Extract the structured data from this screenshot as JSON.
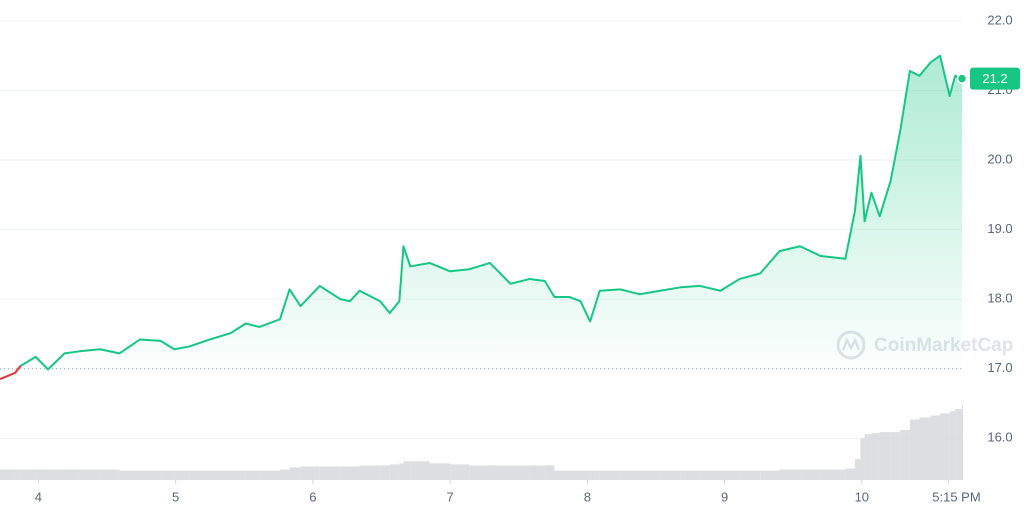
{
  "chart_data": {
    "type": "line",
    "x": [
      3.72,
      3.83,
      3.87,
      3.98,
      4.07,
      4.19,
      4.3,
      4.45,
      4.59,
      4.74,
      4.89,
      4.99,
      5.1,
      5.25,
      5.4,
      5.51,
      5.61,
      5.76,
      5.83,
      5.91,
      6.05,
      6.2,
      6.27,
      6.34,
      6.49,
      6.56,
      6.63,
      6.66,
      6.71,
      6.85,
      7.0,
      7.14,
      7.29,
      7.44,
      7.58,
      7.69,
      7.76,
      7.87,
      7.95,
      8.02,
      8.09,
      8.24,
      8.38,
      8.53,
      8.68,
      8.82,
      8.97,
      9.11,
      9.26,
      9.4,
      9.55,
      9.7,
      9.88,
      9.95,
      9.99,
      10.02,
      10.07,
      10.13,
      10.21,
      10.28,
      10.35,
      10.42,
      10.5,
      10.57,
      10.64,
      10.68,
      10.73
    ],
    "series": [
      {
        "color": "#16c784",
        "down_color": "#ea3943",
        "values": [
          16.85,
          16.94,
          17.04,
          17.17,
          16.99,
          17.22,
          17.25,
          17.28,
          17.22,
          17.42,
          17.4,
          17.28,
          17.32,
          17.42,
          17.51,
          17.65,
          17.6,
          17.71,
          18.14,
          17.9,
          18.19,
          18.0,
          17.97,
          18.12,
          17.97,
          17.8,
          17.97,
          18.76,
          18.47,
          18.52,
          18.4,
          18.43,
          18.52,
          18.22,
          18.29,
          18.26,
          18.03,
          18.03,
          17.97,
          17.68,
          18.12,
          18.14,
          18.07,
          18.12,
          18.17,
          18.19,
          18.12,
          18.29,
          18.37,
          18.69,
          18.76,
          18.62,
          18.58,
          19.27,
          20.06,
          19.12,
          19.53,
          19.19,
          19.7,
          20.42,
          21.28,
          21.21,
          21.4,
          21.5,
          20.92,
          21.21,
          21.17
        ]
      }
    ],
    "volume": [
      10,
      10,
      10,
      10,
      10,
      10,
      10,
      10,
      9,
      9,
      9,
      9,
      9,
      9,
      9,
      9,
      9,
      10,
      12,
      13,
      13,
      13,
      13,
      14,
      14,
      15,
      16,
      18,
      18,
      16,
      15,
      14,
      14,
      14,
      14,
      14,
      9,
      9,
      9,
      9,
      9,
      9,
      9,
      9,
      9,
      9,
      9,
      9,
      9,
      10,
      10,
      10,
      11,
      20,
      40,
      44,
      45,
      46,
      46,
      48,
      58,
      60,
      62,
      64,
      66,
      68,
      72
    ],
    "volume_color": "#d3d6db",
    "baseline": 17,
    "xlim": [
      3.72,
      10.73
    ],
    "xticks": [
      4,
      5,
      6,
      7,
      8,
      9,
      10,
      {
        "value": 10.63,
        "label": "5:15 PM"
      }
    ],
    "ylim": [
      15.4,
      22.3
    ],
    "yticks": [
      {
        "value": 16,
        "label": "16.0"
      },
      {
        "value": 17,
        "label": "17.0"
      },
      {
        "value": 18,
        "label": "18.0"
      },
      {
        "value": 19,
        "label": "19.0"
      },
      {
        "value": 20,
        "label": "20.0"
      },
      {
        "value": 21,
        "label": "21.0"
      },
      {
        "value": 22,
        "label": "22.0"
      }
    ],
    "grid": true,
    "current_label": "21.2",
    "watermark": "CoinMarketCap"
  }
}
